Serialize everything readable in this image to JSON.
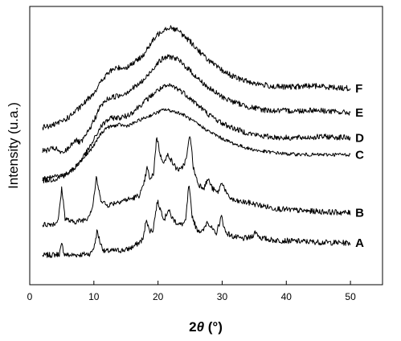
{
  "chart_data": {
    "type": "line",
    "xlabel_main": "2",
    "xlabel_italic": "θ",
    "xlabel_unit": " (°)",
    "ylabel": "Intensity (u.a.)",
    "xlim": [
      0,
      55
    ],
    "x_ticks": [
      0,
      10,
      20,
      30,
      40,
      50
    ],
    "x_tick_labels": [
      "0",
      "10",
      "20",
      "30",
      "40",
      "50"
    ],
    "y_ticks_visible": false,
    "grid": false,
    "series": [
      {
        "name": "A",
        "noise": 0.01,
        "points": [
          [
            2,
            0.105
          ],
          [
            4,
            0.108
          ],
          [
            4.6,
            0.11
          ],
          [
            5,
            0.145
          ],
          [
            5.4,
            0.11
          ],
          [
            6,
            0.106
          ],
          [
            8,
            0.108
          ],
          [
            9.5,
            0.112
          ],
          [
            10.1,
            0.14
          ],
          [
            10.5,
            0.195
          ],
          [
            11,
            0.15
          ],
          [
            11.6,
            0.12
          ],
          [
            13,
            0.122
          ],
          [
            15,
            0.125
          ],
          [
            16,
            0.135
          ],
          [
            17,
            0.15
          ],
          [
            17.7,
            0.165
          ],
          [
            18.2,
            0.24
          ],
          [
            18.6,
            0.195
          ],
          [
            19.2,
            0.195
          ],
          [
            19.9,
            0.3
          ],
          [
            20.4,
            0.27
          ],
          [
            21,
            0.235
          ],
          [
            21.6,
            0.27
          ],
          [
            22.2,
            0.24
          ],
          [
            22.8,
            0.225
          ],
          [
            23.5,
            0.215
          ],
          [
            24.3,
            0.225
          ],
          [
            24.8,
            0.36
          ],
          [
            25.3,
            0.25
          ],
          [
            26,
            0.2
          ],
          [
            27,
            0.19
          ],
          [
            27.7,
            0.23
          ],
          [
            28.3,
            0.205
          ],
          [
            29,
            0.18
          ],
          [
            29.9,
            0.245
          ],
          [
            30.5,
            0.19
          ],
          [
            31.5,
            0.175
          ],
          [
            33,
            0.165
          ],
          [
            34.5,
            0.17
          ],
          [
            35.2,
            0.19
          ],
          [
            36,
            0.168
          ],
          [
            38,
            0.16
          ],
          [
            40,
            0.158
          ],
          [
            43,
            0.155
          ],
          [
            46,
            0.152
          ],
          [
            50,
            0.15
          ]
        ]
      },
      {
        "name": "B",
        "noise": 0.01,
        "points": [
          [
            2,
            0.215
          ],
          [
            4,
            0.22
          ],
          [
            4.5,
            0.24
          ],
          [
            5,
            0.35
          ],
          [
            5.5,
            0.24
          ],
          [
            6.5,
            0.225
          ],
          [
            8,
            0.23
          ],
          [
            9,
            0.24
          ],
          [
            9.8,
            0.28
          ],
          [
            10.4,
            0.385
          ],
          [
            11,
            0.31
          ],
          [
            12,
            0.285
          ],
          [
            14,
            0.3
          ],
          [
            16,
            0.31
          ],
          [
            17,
            0.32
          ],
          [
            17.7,
            0.35
          ],
          [
            18.3,
            0.42
          ],
          [
            18.8,
            0.375
          ],
          [
            19.3,
            0.4
          ],
          [
            19.8,
            0.535
          ],
          [
            20.4,
            0.46
          ],
          [
            21,
            0.44
          ],
          [
            21.6,
            0.47
          ],
          [
            22.2,
            0.44
          ],
          [
            22.8,
            0.42
          ],
          [
            23.5,
            0.41
          ],
          [
            24.4,
            0.45
          ],
          [
            25,
            0.545
          ],
          [
            25.5,
            0.42
          ],
          [
            26.3,
            0.36
          ],
          [
            27.2,
            0.35
          ],
          [
            27.8,
            0.38
          ],
          [
            28.5,
            0.345
          ],
          [
            29.3,
            0.33
          ],
          [
            30,
            0.37
          ],
          [
            30.8,
            0.32
          ],
          [
            32,
            0.3
          ],
          [
            34,
            0.295
          ],
          [
            36,
            0.285
          ],
          [
            38,
            0.275
          ],
          [
            40,
            0.27
          ],
          [
            43,
            0.265
          ],
          [
            46,
            0.262
          ],
          [
            50,
            0.258
          ]
        ]
      },
      {
        "name": "C",
        "noise": 0.006,
        "points": [
          [
            2,
            0.385
          ],
          [
            4,
            0.39
          ],
          [
            6,
            0.4
          ],
          [
            7,
            0.42
          ],
          [
            8,
            0.445
          ],
          [
            9,
            0.47
          ],
          [
            10,
            0.5
          ],
          [
            11,
            0.54
          ],
          [
            12,
            0.565
          ],
          [
            13,
            0.57
          ],
          [
            14,
            0.575
          ],
          [
            15,
            0.57
          ],
          [
            16,
            0.578
          ],
          [
            17,
            0.59
          ],
          [
            18,
            0.6
          ],
          [
            19,
            0.61
          ],
          [
            20,
            0.62
          ],
          [
            21,
            0.63
          ],
          [
            22,
            0.625
          ],
          [
            23,
            0.62
          ],
          [
            24,
            0.61
          ],
          [
            25,
            0.595
          ],
          [
            26,
            0.58
          ],
          [
            27,
            0.565
          ],
          [
            28,
            0.55
          ],
          [
            29,
            0.538
          ],
          [
            30,
            0.525
          ],
          [
            32,
            0.505
          ],
          [
            34,
            0.49
          ],
          [
            36,
            0.48
          ],
          [
            38,
            0.475
          ],
          [
            40,
            0.47
          ],
          [
            42,
            0.468
          ],
          [
            44,
            0.467
          ],
          [
            46,
            0.467
          ],
          [
            48,
            0.468
          ],
          [
            50,
            0.467
          ]
        ]
      },
      {
        "name": "D",
        "noise": 0.01,
        "points": [
          [
            2,
            0.375
          ],
          [
            4,
            0.38
          ],
          [
            6,
            0.4
          ],
          [
            7,
            0.42
          ],
          [
            8,
            0.45
          ],
          [
            9,
            0.48
          ],
          [
            10,
            0.52
          ],
          [
            11,
            0.565
          ],
          [
            12,
            0.59
          ],
          [
            13,
            0.6
          ],
          [
            14,
            0.6
          ],
          [
            15,
            0.605
          ],
          [
            16,
            0.62
          ],
          [
            17,
            0.64
          ],
          [
            18,
            0.66
          ],
          [
            19,
            0.68
          ],
          [
            20,
            0.7
          ],
          [
            21,
            0.71
          ],
          [
            22,
            0.715
          ],
          [
            23,
            0.705
          ],
          [
            24,
            0.69
          ],
          [
            25,
            0.67
          ],
          [
            26,
            0.65
          ],
          [
            27,
            0.63
          ],
          [
            28,
            0.61
          ],
          [
            29,
            0.595
          ],
          [
            30,
            0.58
          ],
          [
            32,
            0.56
          ],
          [
            34,
            0.545
          ],
          [
            36,
            0.535
          ],
          [
            38,
            0.53
          ],
          [
            40,
            0.528
          ],
          [
            42,
            0.528
          ],
          [
            44,
            0.53
          ],
          [
            46,
            0.532
          ],
          [
            48,
            0.53
          ],
          [
            50,
            0.528
          ]
        ]
      },
      {
        "name": "E",
        "noise": 0.01,
        "points": [
          [
            2,
            0.48
          ],
          [
            3,
            0.485
          ],
          [
            4,
            0.49
          ],
          [
            4.5,
            0.48
          ],
          [
            5,
            0.47
          ],
          [
            6,
            0.49
          ],
          [
            7,
            0.52
          ],
          [
            8,
            0.51
          ],
          [
            9,
            0.545
          ],
          [
            10,
            0.59
          ],
          [
            11,
            0.64
          ],
          [
            12,
            0.665
          ],
          [
            13,
            0.675
          ],
          [
            14,
            0.68
          ],
          [
            15,
            0.69
          ],
          [
            16,
            0.705
          ],
          [
            17,
            0.72
          ],
          [
            18,
            0.74
          ],
          [
            19,
            0.77
          ],
          [
            20,
            0.8
          ],
          [
            21,
            0.815
          ],
          [
            22,
            0.82
          ],
          [
            23,
            0.81
          ],
          [
            24,
            0.79
          ],
          [
            25,
            0.77
          ],
          [
            26,
            0.745
          ],
          [
            27,
            0.725
          ],
          [
            28,
            0.705
          ],
          [
            29,
            0.69
          ],
          [
            30,
            0.675
          ],
          [
            32,
            0.655
          ],
          [
            34,
            0.64
          ],
          [
            36,
            0.63
          ],
          [
            38,
            0.625
          ],
          [
            40,
            0.625
          ],
          [
            42,
            0.625
          ],
          [
            44,
            0.628
          ],
          [
            46,
            0.625
          ],
          [
            48,
            0.62
          ],
          [
            50,
            0.618
          ]
        ]
      },
      {
        "name": "F",
        "noise": 0.01,
        "points": [
          [
            2,
            0.565
          ],
          [
            4,
            0.575
          ],
          [
            6,
            0.6
          ],
          [
            8,
            0.64
          ],
          [
            10,
            0.69
          ],
          [
            11,
            0.725
          ],
          [
            12,
            0.755
          ],
          [
            13,
            0.775
          ],
          [
            14,
            0.78
          ],
          [
            15,
            0.78
          ],
          [
            16,
            0.795
          ],
          [
            17,
            0.81
          ],
          [
            18,
            0.835
          ],
          [
            19,
            0.87
          ],
          [
            20,
            0.9
          ],
          [
            21,
            0.92
          ],
          [
            22,
            0.925
          ],
          [
            23,
            0.915
          ],
          [
            24,
            0.895
          ],
          [
            25,
            0.875
          ],
          [
            26,
            0.85
          ],
          [
            27,
            0.825
          ],
          [
            28,
            0.805
          ],
          [
            29,
            0.785
          ],
          [
            30,
            0.77
          ],
          [
            32,
            0.745
          ],
          [
            34,
            0.73
          ],
          [
            36,
            0.72
          ],
          [
            38,
            0.712
          ],
          [
            40,
            0.71
          ],
          [
            42,
            0.712
          ],
          [
            44,
            0.715
          ],
          [
            46,
            0.712
          ],
          [
            48,
            0.708
          ],
          [
            50,
            0.705
          ]
        ]
      }
    ]
  }
}
